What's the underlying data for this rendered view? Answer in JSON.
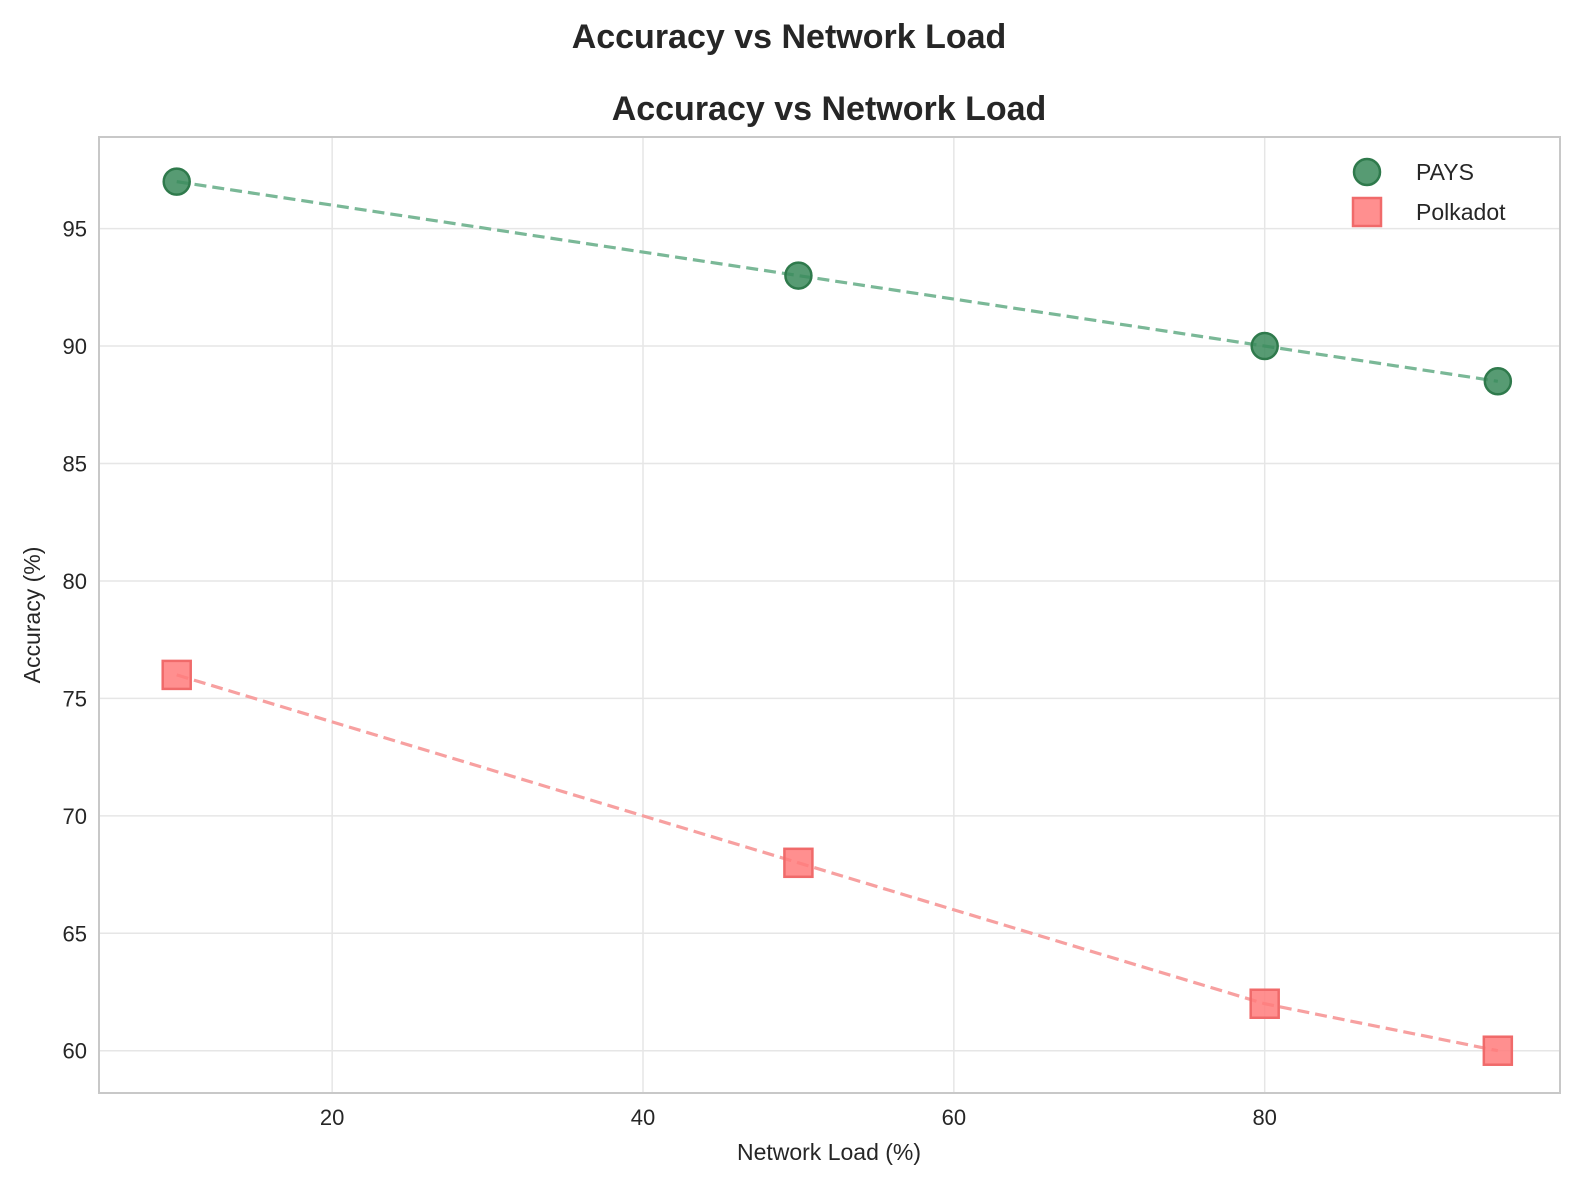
{
  "figure": {
    "suptitle": "Accuracy vs Network Load"
  },
  "chart_data": {
    "type": "scatter",
    "title": "Accuracy vs Network Load",
    "xlabel": "Network Load (%)",
    "ylabel": "Accuracy (%)",
    "xlim": [
      5,
      99
    ],
    "ylim": [
      58.2,
      98.9
    ],
    "xticks": [
      20,
      40,
      60,
      80
    ],
    "yticks": [
      60,
      65,
      70,
      75,
      80,
      85,
      90,
      95
    ],
    "grid": true,
    "legend_position": "top-right",
    "series": [
      {
        "name": "PAYS",
        "marker": "circle",
        "color": "#3a8a5a",
        "line_color": "#7ab897",
        "x": [
          10,
          50,
          80,
          95
        ],
        "y": [
          97,
          93,
          90,
          88.5
        ]
      },
      {
        "name": "Polkadot",
        "marker": "square",
        "color": "#ff7b7b",
        "line_color": "#f7a0a0",
        "x": [
          10,
          50,
          80,
          95
        ],
        "y": [
          76,
          68,
          62,
          60
        ]
      }
    ]
  }
}
